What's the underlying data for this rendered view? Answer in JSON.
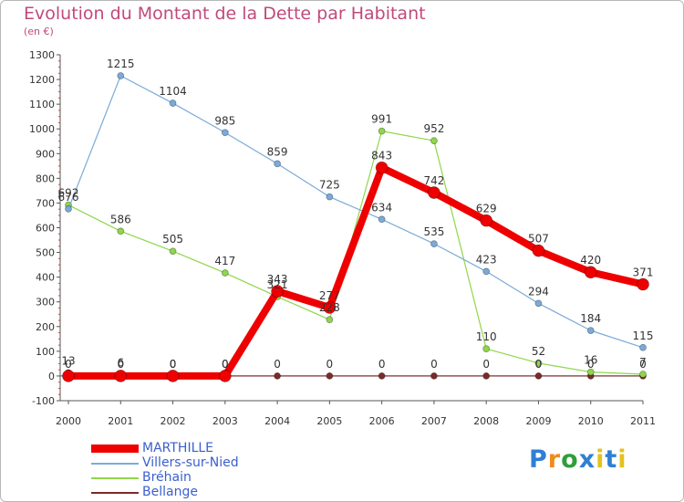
{
  "header": {
    "title": "Evolution du Montant de la Dette par Habitant",
    "subtitle": "(en €)"
  },
  "logo": {
    "text": [
      "P",
      "r",
      "o",
      "x",
      "i",
      "t",
      "i"
    ],
    "colors": [
      "#2f7fd6",
      "#f08a1c",
      "#2f9e3a",
      "#2f7fd6",
      "#e4c21c",
      "#2f7fd6",
      "#e4c21c"
    ]
  },
  "chart_data": {
    "type": "line",
    "title": "Evolution du Montant de la Dette par Habitant",
    "subtitle": "(en €)",
    "xlabel": "",
    "ylabel": "",
    "x": [
      2000,
      2001,
      2002,
      2003,
      2004,
      2005,
      2006,
      2007,
      2008,
      2009,
      2010,
      2011
    ],
    "ylim": [
      -100,
      1300
    ],
    "yticks": [
      -100,
      0,
      100,
      200,
      300,
      400,
      500,
      600,
      700,
      800,
      900,
      1000,
      1100,
      1200,
      1300
    ],
    "grid": false,
    "legend_position": "bottom-left",
    "series": [
      {
        "name": "Bellange",
        "color": "#7a2a2a",
        "values": [
          13,
          6,
          0,
          0,
          0,
          0,
          0,
          0,
          0,
          0,
          0,
          0
        ],
        "labels": [
          "13",
          "6",
          "0",
          "0",
          "0",
          "0",
          "0",
          "0",
          "0",
          "0",
          "0",
          "0"
        ]
      },
      {
        "name": "Bréhain",
        "color": "#8fd64a",
        "values": [
          692,
          586,
          505,
          417,
          321,
          228,
          991,
          952,
          110,
          52,
          16,
          7
        ],
        "labels": [
          "692",
          "586",
          "505",
          "417",
          "321",
          "228",
          "991",
          "952",
          "110",
          "52",
          "16",
          "7"
        ]
      },
      {
        "name": "Villers-sur-Nied",
        "color": "#7aaad8",
        "values": [
          676,
          1215,
          1104,
          985,
          859,
          725,
          634,
          535,
          423,
          294,
          184,
          115
        ],
        "labels": [
          "676",
          "1215",
          "1104",
          "985",
          "859",
          "725",
          "634",
          "535",
          "423",
          "294",
          "184",
          "115"
        ]
      },
      {
        "name": "MARTHILLE",
        "color": "#ee0000",
        "values": [
          0,
          0,
          0,
          0,
          343,
          277,
          843,
          742,
          629,
          507,
          420,
          371
        ],
        "labels": [
          "0",
          "0",
          "0",
          "0",
          "343",
          "277",
          "843",
          "742",
          "629",
          "507",
          "420",
          "371"
        ]
      }
    ]
  }
}
